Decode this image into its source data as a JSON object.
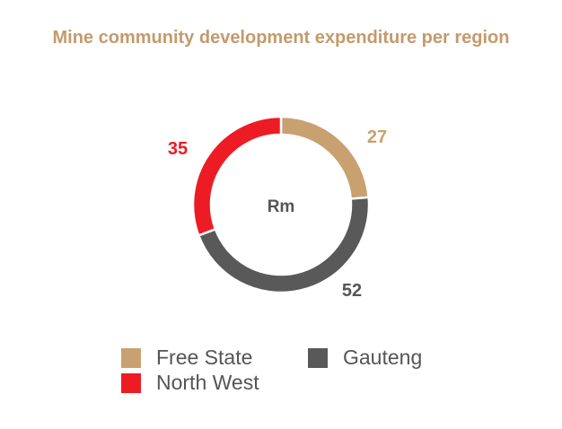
{
  "chart_data": {
    "type": "pie",
    "title": "Mine community development expenditure per region",
    "center_label": "Rm",
    "legend_position": "bottom",
    "series": [
      {
        "name": "Free State",
        "value": 27,
        "color": "#c9a070"
      },
      {
        "name": "Gauteng",
        "value": 52,
        "color": "#595959"
      },
      {
        "name": "North West",
        "value": 35,
        "color": "#ed1c24"
      }
    ]
  },
  "colors": {
    "title": "#c49a6c",
    "center_label": "#555555"
  }
}
